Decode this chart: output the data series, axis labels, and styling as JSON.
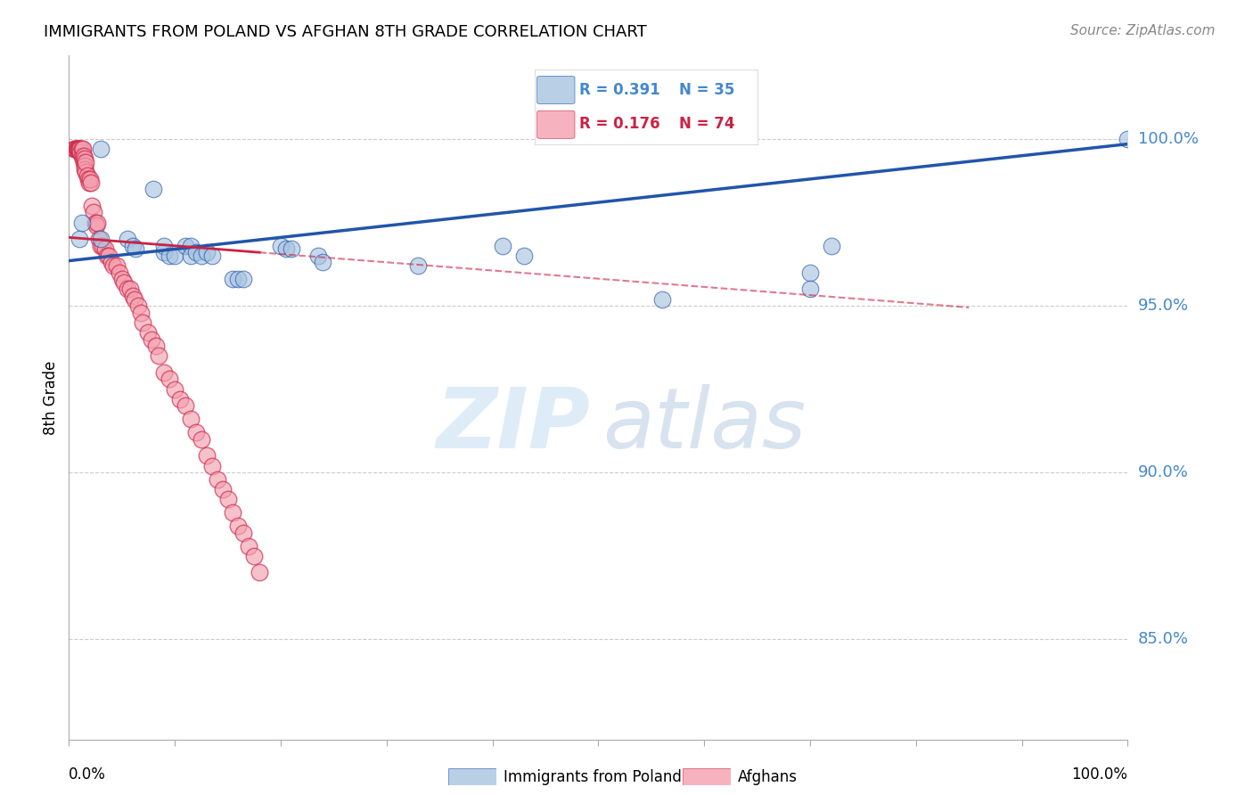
{
  "title": "IMMIGRANTS FROM POLAND VS AFGHAN 8TH GRADE CORRELATION CHART",
  "source": "Source: ZipAtlas.com",
  "ylabel": "8th Grade",
  "ytick_labels": [
    "100.0%",
    "95.0%",
    "90.0%",
    "85.0%"
  ],
  "ytick_values": [
    1.0,
    0.95,
    0.9,
    0.85
  ],
  "xlim": [
    0.0,
    1.0
  ],
  "ylim": [
    0.82,
    1.025
  ],
  "legend_r1": "R = 0.391",
  "legend_n1": "N = 35",
  "legend_r2": "R = 0.176",
  "legend_n2": "N = 74",
  "color_blue": "#a8c4e0",
  "color_pink": "#f4a0b0",
  "color_trendline_blue": "#2255aa",
  "color_trendline_pink": "#cc2244",
  "color_axis": "#aaaaaa",
  "color_grid": "#cccccc",
  "color_ytick_label": "#4488cc",
  "watermark_zip": "ZIP",
  "watermark_atlas": "atlas",
  "poland_x": [
    0.01,
    0.012,
    0.03,
    0.03,
    0.055,
    0.06,
    0.063,
    0.08,
    0.09,
    0.09,
    0.095,
    0.1,
    0.11,
    0.115,
    0.115,
    0.12,
    0.125,
    0.13,
    0.135,
    0.155,
    0.16,
    0.165,
    0.2,
    0.205,
    0.21,
    0.235,
    0.24,
    0.33,
    0.41,
    0.43,
    0.56,
    0.7,
    0.7,
    0.72,
    1.0
  ],
  "poland_y": [
    0.97,
    0.975,
    0.97,
    0.997,
    0.97,
    0.968,
    0.967,
    0.985,
    0.966,
    0.968,
    0.965,
    0.965,
    0.968,
    0.968,
    0.965,
    0.966,
    0.965,
    0.966,
    0.965,
    0.958,
    0.958,
    0.958,
    0.968,
    0.967,
    0.967,
    0.965,
    0.963,
    0.962,
    0.968,
    0.965,
    0.952,
    0.96,
    0.955,
    0.968,
    1.0
  ],
  "afghan_x": [
    0.005,
    0.006,
    0.007,
    0.007,
    0.008,
    0.009,
    0.009,
    0.01,
    0.01,
    0.011,
    0.011,
    0.012,
    0.012,
    0.013,
    0.013,
    0.014,
    0.014,
    0.015,
    0.015,
    0.015,
    0.016,
    0.016,
    0.017,
    0.018,
    0.019,
    0.02,
    0.021,
    0.022,
    0.023,
    0.025,
    0.026,
    0.027,
    0.028,
    0.03,
    0.032,
    0.034,
    0.036,
    0.038,
    0.04,
    0.042,
    0.045,
    0.048,
    0.05,
    0.052,
    0.055,
    0.058,
    0.06,
    0.062,
    0.065,
    0.068,
    0.07,
    0.075,
    0.078,
    0.082,
    0.085,
    0.09,
    0.095,
    0.1,
    0.105,
    0.11,
    0.115,
    0.12,
    0.125,
    0.13,
    0.135,
    0.14,
    0.145,
    0.15,
    0.155,
    0.16,
    0.165,
    0.17,
    0.175,
    0.18
  ],
  "afghan_y": [
    0.997,
    0.997,
    0.997,
    0.997,
    0.997,
    0.997,
    0.997,
    0.997,
    0.997,
    0.997,
    0.996,
    0.997,
    0.995,
    0.997,
    0.994,
    0.995,
    0.993,
    0.994,
    0.992,
    0.991,
    0.99,
    0.993,
    0.989,
    0.988,
    0.987,
    0.988,
    0.987,
    0.98,
    0.978,
    0.975,
    0.974,
    0.975,
    0.97,
    0.968,
    0.968,
    0.967,
    0.965,
    0.965,
    0.963,
    0.962,
    0.962,
    0.96,
    0.958,
    0.957,
    0.955,
    0.955,
    0.953,
    0.952,
    0.95,
    0.948,
    0.945,
    0.942,
    0.94,
    0.938,
    0.935,
    0.93,
    0.928,
    0.925,
    0.922,
    0.92,
    0.916,
    0.912,
    0.91,
    0.905,
    0.902,
    0.898,
    0.895,
    0.892,
    0.888,
    0.884,
    0.882,
    0.878,
    0.875,
    0.87
  ],
  "trendline_blue_x0": 0.0,
  "trendline_blue_y0": 0.9635,
  "trendline_blue_x1": 1.0,
  "trendline_blue_y1": 0.9985,
  "trendline_pink_x0": 0.0,
  "trendline_pink_y0": 0.9705,
  "trendline_pink_x1": 0.18,
  "trendline_pink_y1": 0.966,
  "trendline_pink_dash_x0": 0.18,
  "trendline_pink_dash_y0": 0.966,
  "trendline_pink_dash_x1": 0.85,
  "trendline_pink_dash_y1": 0.9495
}
